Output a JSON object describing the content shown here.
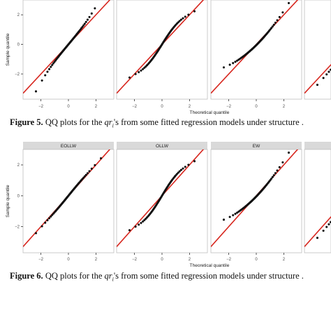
{
  "figure5": {
    "caption_label": "Figure 5.",
    "caption_pre": " QQ plots for the ",
    "caption_var": "qr",
    "caption_sub": "i",
    "caption_post": "'s from some fitted regression models under structure ."
  },
  "figure6": {
    "caption_label": "Figure 6.",
    "caption_pre": " QQ plots for the ",
    "caption_var": "qr",
    "caption_sub": "i",
    "caption_post": "'s from some fitted regression models under structure ."
  },
  "colors": {
    "reference_line": "#d7261e",
    "points": "#111111",
    "strip": "#d9d9d9"
  },
  "chart_data": [
    {
      "type": "scatter",
      "figure": "Figure 5",
      "panels": [
        {
          "name": "",
          "shape": "heavy-tailed"
        },
        {
          "name": "",
          "shape": "s-shaped"
        },
        {
          "name": "",
          "shape": "right-skewed"
        },
        {
          "name": "",
          "shape": "partial"
        }
      ],
      "xlabel": "Theoretical quantile",
      "ylabel": "Sample quantile",
      "x_ticks": [
        -2,
        0,
        2
      ],
      "y_ticks": [
        -2,
        0,
        2
      ],
      "xlim": [
        -3.3,
        3.3
      ],
      "ylim": [
        -3.7,
        3.0
      ],
      "reference_line": {
        "intercept": 0,
        "slope": 1
      },
      "n_points": 55
    },
    {
      "type": "scatter",
      "figure": "Figure 6",
      "panels": [
        {
          "name": "EOLLW",
          "shape": "near-linear"
        },
        {
          "name": "OLLW",
          "shape": "s-shaped"
        },
        {
          "name": "EW",
          "shape": "right-skewed"
        },
        {
          "name": "",
          "shape": "partial"
        }
      ],
      "xlabel": "Theoretical quantile",
      "ylabel": "Sample quantile",
      "x_ticks": [
        -2,
        0,
        2
      ],
      "y_ticks": [
        -2,
        0,
        2
      ],
      "xlim": [
        -3.3,
        3.3
      ],
      "ylim": [
        -3.7,
        3.0
      ],
      "reference_line": {
        "intercept": 0,
        "slope": 1
      },
      "n_points": 55
    }
  ]
}
